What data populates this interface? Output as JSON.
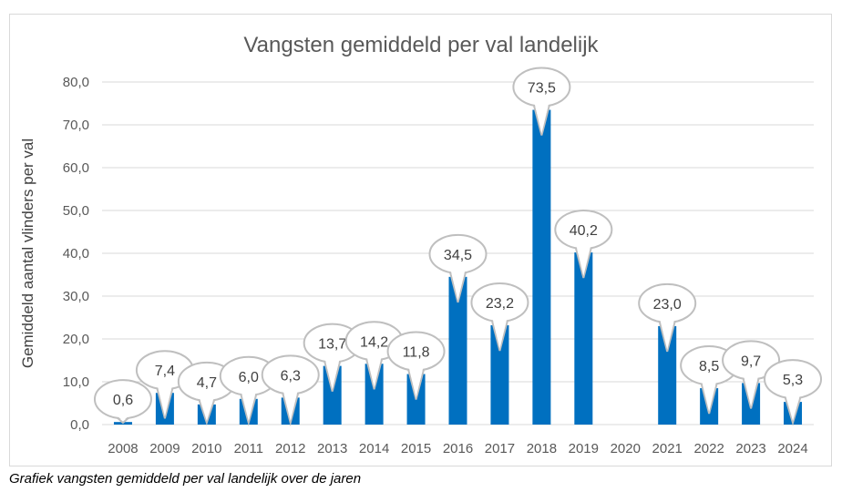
{
  "chart_data": {
    "type": "bar",
    "title": "Vangsten gemiddeld per val landelijk",
    "xlabel": "",
    "ylabel": "Gemiddeld aantal vlinders per val",
    "ylim": [
      0,
      80
    ],
    "yticks": [
      "0,0",
      "10,0",
      "20,0",
      "30,0",
      "40,0",
      "50,0",
      "60,0",
      "70,0",
      "80,0"
    ],
    "grid": true,
    "categories": [
      "2008",
      "2009",
      "2010",
      "2011",
      "2012",
      "2013",
      "2014",
      "2015",
      "2016",
      "2017",
      "2018",
      "2019",
      "2020",
      "2021",
      "2022",
      "2023",
      "2024"
    ],
    "values": [
      0.6,
      7.4,
      4.7,
      6.0,
      6.3,
      13.7,
      14.2,
      11.8,
      34.5,
      23.2,
      73.5,
      40.2,
      null,
      23.0,
      8.5,
      9.7,
      5.3
    ],
    "data_labels": [
      "0,6",
      "7,4",
      "4,7",
      "6,0",
      "6,3",
      "13,7",
      "14,2",
      "11,8",
      "34,5",
      "23,2",
      "73,5",
      "40,2",
      "",
      "23,0",
      "8,5",
      "9,7",
      "5,3"
    ],
    "bar_color": "#0070C0"
  },
  "caption": "Grafiek vangsten gemiddeld per val landelijk over de jaren"
}
